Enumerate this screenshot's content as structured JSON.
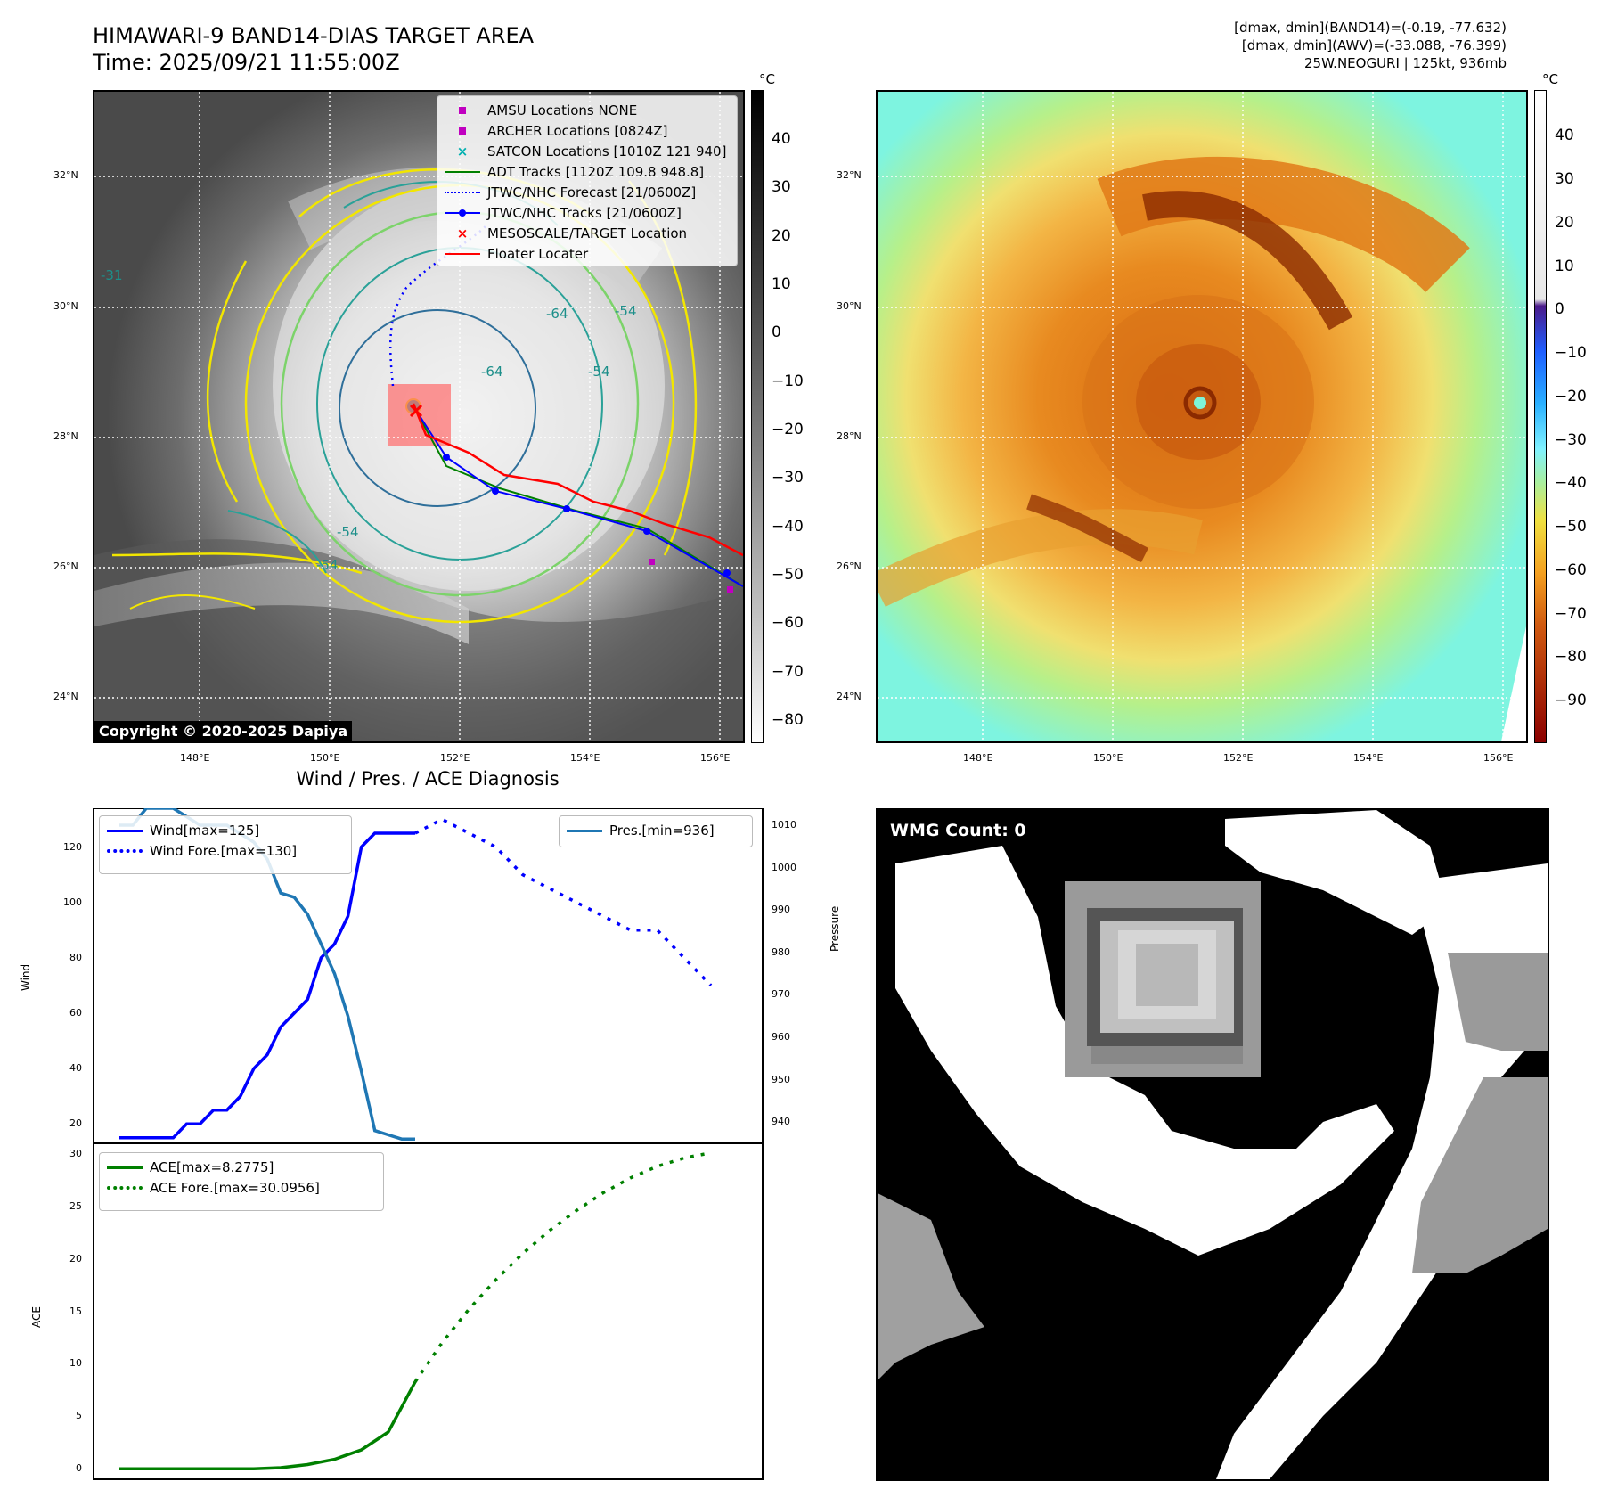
{
  "header": {
    "title_line1": "HIMAWARI-9 BAND14-DIAS TARGET AREA",
    "title_line2": "Time: 2025/09/21 11:55:00Z",
    "info_line1": "[dmax, dmin](BAND14)=(-0.19, -77.632)",
    "info_line2": "[dmax, dmin](AWV)=(-33.088, -76.399)",
    "info_line3": "25W.NEOGURI | 125kt, 936mb"
  },
  "map_axes": {
    "lat_labels": [
      "32°N",
      "30°N",
      "28°N",
      "26°N",
      "24°N"
    ],
    "lon_labels": [
      "148°E",
      "150°E",
      "152°E",
      "154°E",
      "156°E"
    ]
  },
  "ir_panel": {
    "legend": [
      {
        "label": "AMSU Locations NONE",
        "symbol": "square",
        "color": "#c000c0"
      },
      {
        "label": "ARCHER Locations [0824Z]",
        "symbol": "square",
        "color": "#c000c0"
      },
      {
        "label": "SATCON Locations [1010Z 121 940]",
        "symbol": "x",
        "color": "#00b0b0"
      },
      {
        "label": "ADT Tracks [1120Z 109.8 948.8]",
        "symbol": "line",
        "color": "#008000"
      },
      {
        "label": "JTWC/NHC Forecast [21/0600Z]",
        "symbol": "dotted",
        "color": "#0000ff"
      },
      {
        "label": "JTWC/NHC Tracks [21/0600Z]",
        "symbol": "line-dot",
        "color": "#0000ff"
      },
      {
        "label": "MESOSCALE/TARGET Location",
        "symbol": "x",
        "color": "#ff0000"
      },
      {
        "label": "Floater Locater",
        "symbol": "line",
        "color": "#ff0000"
      }
    ],
    "contour_labels": [
      "-31",
      "-54",
      "-64",
      "-64",
      "-54",
      "-54",
      "-54"
    ],
    "copyright": "Copyright © 2020-2025 Dapiya",
    "colorbar_unit": "°C",
    "colorbar_ticks": [
      "40",
      "30",
      "20",
      "10",
      "0",
      "−10",
      "−20",
      "−30",
      "−40",
      "−50",
      "−60",
      "−70",
      "−80"
    ]
  },
  "awv_panel": {
    "colorbar_unit": "°C",
    "colorbar_ticks": [
      "40",
      "30",
      "20",
      "10",
      "0",
      "−10",
      "−20",
      "−30",
      "−40",
      "−50",
      "−60",
      "−70",
      "−80",
      "−90"
    ]
  },
  "wmg_panel": {
    "label": "WMG Count: 0"
  },
  "chart_data": [
    {
      "type": "line",
      "title": "Wind / Pres. / ACE Diagnosis",
      "ylabel": "Wind",
      "y2label": "Pressure",
      "ylim": [
        13,
        134
      ],
      "y2lim": [
        935,
        1014
      ],
      "yticks": [
        "120",
        "100",
        "80",
        "60",
        "40",
        "20"
      ],
      "y2ticks": [
        "1010",
        "1000",
        "990",
        "980",
        "970",
        "960",
        "950",
        "940"
      ],
      "legend_left": [
        "Wind[max=125]",
        "Wind Fore.[max=130]"
      ],
      "legend_right": [
        "Pres.[min=936]"
      ],
      "colors": {
        "wind": "#0000ff",
        "pressure": "#1f77b4"
      },
      "series": [
        {
          "name": "Wind[max=125]",
          "style": "solid",
          "x": [
            0,
            1,
            2,
            3,
            4,
            5,
            6,
            7,
            8,
            9,
            10,
            11,
            12,
            13,
            14,
            15,
            16,
            17,
            18,
            19,
            20,
            21,
            22
          ],
          "values": [
            15,
            15,
            15,
            15,
            15,
            20,
            20,
            25,
            25,
            30,
            40,
            45,
            55,
            60,
            65,
            80,
            85,
            95,
            120,
            125,
            125,
            125,
            125
          ]
        },
        {
          "name": "Wind Fore.[max=130]",
          "style": "dotted",
          "x": [
            22,
            24,
            26,
            28,
            30,
            32,
            34,
            36,
            38,
            40,
            42,
            44
          ],
          "values": [
            125,
            130,
            125,
            120,
            110,
            105,
            100,
            95,
            90,
            90,
            80,
            70
          ]
        },
        {
          "name": "Pres.[min=936]",
          "style": "solid",
          "axis": "right",
          "x": [
            0,
            1,
            2,
            3,
            4,
            5,
            6,
            7,
            8,
            9,
            10,
            11,
            12,
            13,
            14,
            15,
            16,
            17,
            18,
            19,
            20,
            21,
            22
          ],
          "values": [
            1010,
            1010,
            1014,
            1014,
            1014,
            1012,
            1010,
            1010,
            1010,
            1008,
            1006,
            1002,
            994,
            993,
            989,
            982,
            975,
            965,
            952,
            938,
            937,
            936,
            936
          ]
        }
      ]
    },
    {
      "type": "line",
      "ylabel": "ACE",
      "ylim": [
        -1,
        31
      ],
      "yticks": [
        "30",
        "25",
        "20",
        "15",
        "10",
        "5",
        "0"
      ],
      "legend": [
        "ACE[max=8.2775]",
        "ACE Fore.[max=30.0956]"
      ],
      "colors": {
        "ace": "#008000"
      },
      "series": [
        {
          "name": "ACE[max=8.2775]",
          "style": "solid",
          "x": [
            0,
            2,
            4,
            6,
            8,
            10,
            12,
            14,
            16,
            18,
            20,
            22
          ],
          "values": [
            0,
            0,
            0,
            0,
            0,
            0,
            0.1,
            0.4,
            0.9,
            1.8,
            3.5,
            8.2775
          ]
        },
        {
          "name": "ACE Fore.[max=30.0956]",
          "style": "dotted",
          "x": [
            22,
            24,
            26,
            28,
            30,
            32,
            34,
            36,
            38,
            40,
            42,
            44
          ],
          "values": [
            8.2775,
            12,
            15.2,
            18,
            20.5,
            22.7,
            24.6,
            26.3,
            27.7,
            28.8,
            29.6,
            30.0956
          ]
        }
      ]
    }
  ]
}
